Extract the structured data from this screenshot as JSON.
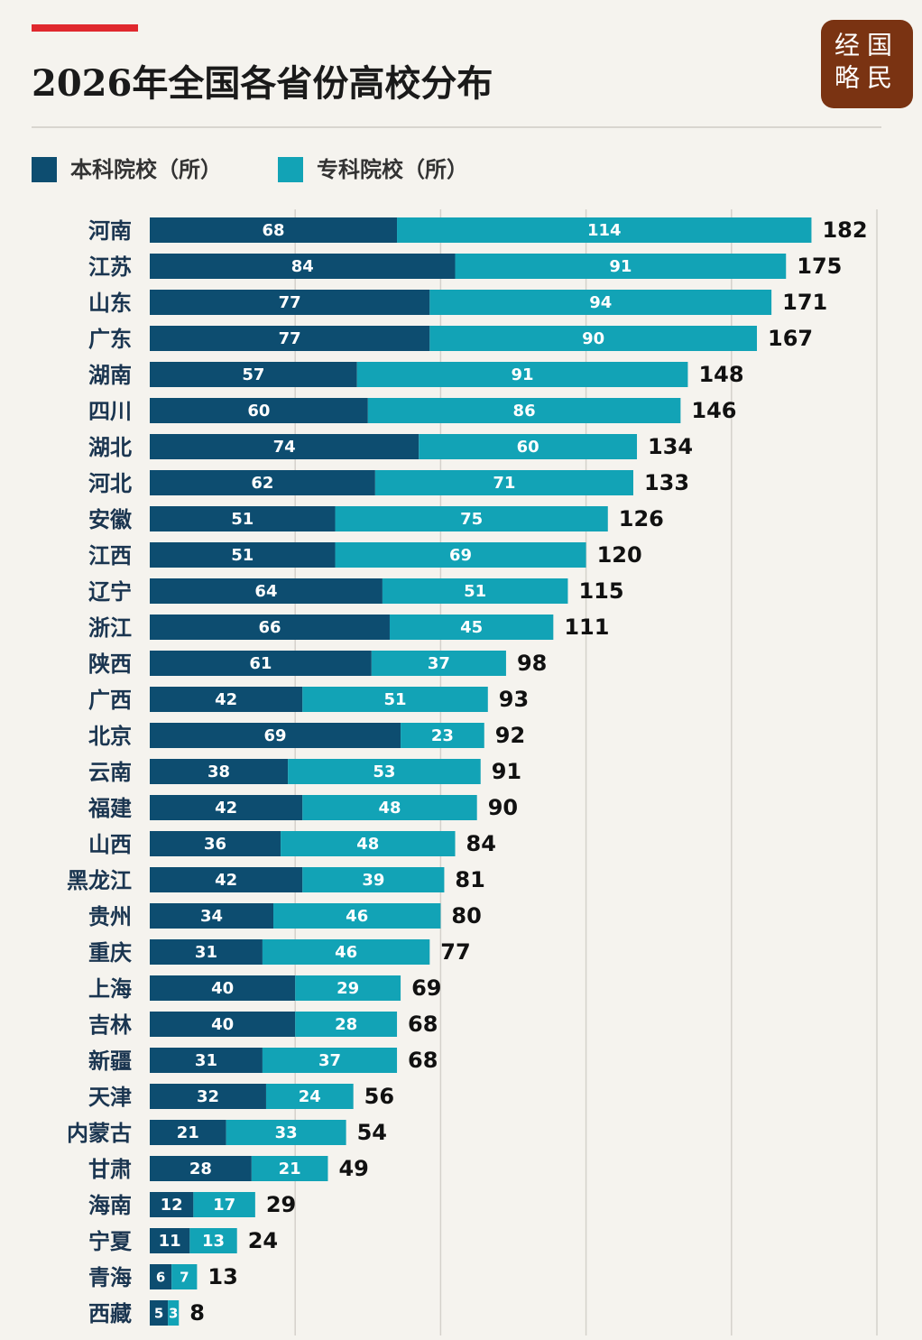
{
  "chart_data": {
    "type": "bar",
    "orientation": "horizontal",
    "stacked": true,
    "title": "2026年全国各省份高校分布",
    "logo": [
      "经国",
      "略民"
    ],
    "categories": [
      "河南",
      "江苏",
      "山东",
      "广东",
      "湖南",
      "四川",
      "湖北",
      "河北",
      "安徽",
      "江西",
      "辽宁",
      "浙江",
      "陕西",
      "广西",
      "北京",
      "云南",
      "福建",
      "山西",
      "黑龙江",
      "贵州",
      "重庆",
      "上海",
      "吉林",
      "新疆",
      "天津",
      "内蒙古",
      "甘肃",
      "海南",
      "宁夏",
      "青海",
      "西藏"
    ],
    "series": [
      {
        "name": "本科院校（所）",
        "color": "#0d4d70",
        "values": [
          68,
          84,
          77,
          77,
          57,
          60,
          74,
          62,
          51,
          51,
          64,
          66,
          61,
          42,
          69,
          38,
          42,
          36,
          42,
          34,
          31,
          40,
          40,
          31,
          32,
          21,
          28,
          12,
          11,
          6,
          5
        ]
      },
      {
        "name": "专科院校（所）",
        "color": "#12a3b6",
        "values": [
          114,
          91,
          94,
          90,
          91,
          86,
          60,
          71,
          75,
          69,
          51,
          45,
          37,
          51,
          23,
          53,
          48,
          48,
          39,
          46,
          46,
          29,
          28,
          37,
          24,
          33,
          21,
          17,
          13,
          7,
          3
        ]
      }
    ],
    "totals": [
      182,
      175,
      171,
      167,
      148,
      146,
      134,
      133,
      126,
      120,
      115,
      111,
      98,
      93,
      92,
      91,
      90,
      84,
      81,
      80,
      77,
      69,
      68,
      68,
      56,
      54,
      49,
      29,
      24,
      13,
      8
    ],
    "xlim": [
      0,
      200
    ],
    "xticks": [
      40,
      80,
      120,
      160,
      200
    ],
    "grid": true
  }
}
